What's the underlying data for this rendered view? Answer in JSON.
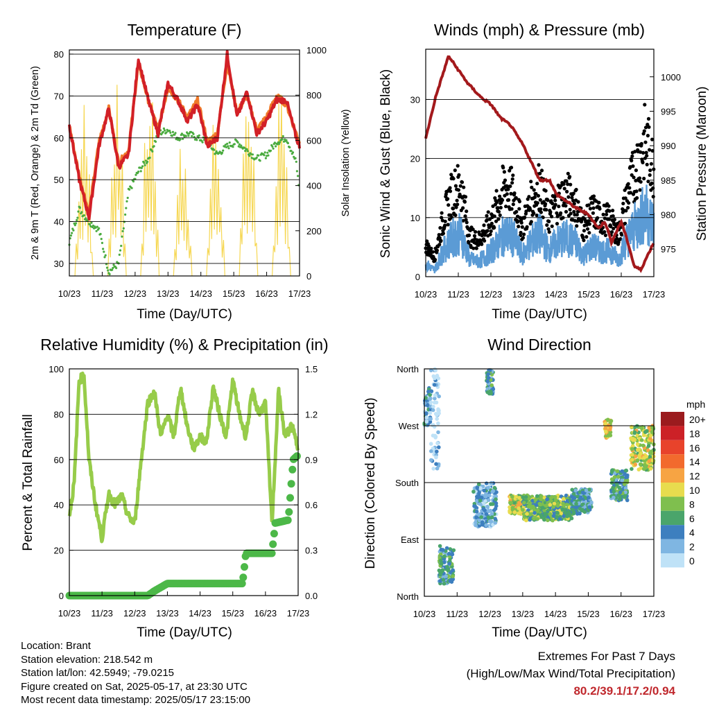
{
  "colors": {
    "temp": "#d22027",
    "temp9": "#f07a2a",
    "dew": "#4aab3f",
    "solar": "#f6d752",
    "gust": "#000000",
    "wind": "#5b9bd5",
    "pressure": "#a3191c",
    "rh": "#97cc4a",
    "rain": "#4cb848",
    "extremes": "#c0282d"
  },
  "x_ticks": [
    "10/23",
    "11/23",
    "12/23",
    "13/23",
    "14/23",
    "15/23",
    "16/23",
    "17/23"
  ],
  "charts": {
    "temperature": {
      "title": "Temperature (F)",
      "xlabel": "Time (Day/UTC)",
      "ylabel": "2m & 9m T (Red, Orange) & 2m Td (Green)",
      "ylabel2": "Solar Insolation (Yellow)",
      "yticks": [
        "80",
        "70",
        "60",
        "50",
        "40",
        "30"
      ],
      "y2ticks": [
        "1000",
        "800",
        "600",
        "400",
        "200",
        "0"
      ]
    },
    "winds": {
      "title": "Winds (mph) & Pressure (mb)",
      "xlabel": "Time (Day/UTC)",
      "ylabel": "Sonic Wind & Gust (Blue, Black)",
      "ylabel2": "Station Pressure (Maroon)",
      "yticks": [
        "30",
        "20",
        "10",
        "0"
      ],
      "y2ticks": [
        "1000",
        "995",
        "990",
        "985",
        "980",
        "975"
      ]
    },
    "humidity": {
      "title": "Relative Humidity (%) & Precipitation (in)",
      "xlabel": "Time (Day/UTC)",
      "ylabel": "Percent & Total Rainfall",
      "yticks": [
        "100",
        "80",
        "60",
        "40",
        "20",
        "0"
      ],
      "y2ticks": [
        "1.5",
        "1.2",
        "0.9",
        "0.6",
        "0.3",
        "0.0"
      ]
    },
    "direction": {
      "title": "Wind Direction",
      "xlabel": "Time (Day/UTC)",
      "ylabel": "Direction (Colored By Speed)",
      "yticks": [
        "North",
        "West",
        "South",
        "East",
        "North"
      ],
      "legend_title": "mph",
      "legend": [
        {
          "label": "20+",
          "color": "#9b1b1e"
        },
        {
          "label": "18",
          "color": "#cc2127"
        },
        {
          "label": "16",
          "color": "#e8432b"
        },
        {
          "label": "14",
          "color": "#f26a2d"
        },
        {
          "label": "12",
          "color": "#f7a443"
        },
        {
          "label": "10",
          "color": "#e8dc4e"
        },
        {
          "label": "8",
          "color": "#7fbf4e"
        },
        {
          "label": "6",
          "color": "#4aa56b"
        },
        {
          "label": "4",
          "color": "#3d7fbf"
        },
        {
          "label": "2",
          "color": "#7fb6e2"
        },
        {
          "label": "0",
          "color": "#bfe2f7"
        }
      ]
    }
  },
  "chart_data": [
    {
      "type": "line",
      "title": "Temperature (F)",
      "xlabel": "Time (Day/UTC)",
      "ylabel": "2m & 9m T (Red, Orange) & 2m Td (Green)",
      "y2label": "Solar Insolation (Yellow)",
      "x": [
        10.0,
        10.3,
        10.6,
        10.9,
        11.2,
        11.5,
        11.8,
        12.1,
        12.4,
        12.7,
        13.0,
        13.3,
        13.6,
        13.9,
        14.2,
        14.5,
        14.8,
        15.1,
        15.4,
        15.7,
        16.0,
        16.3,
        16.6,
        16.9,
        17.0
      ],
      "ylim": [
        27,
        81
      ],
      "y2lim": [
        0,
        1000
      ],
      "series": [
        {
          "name": "2m T",
          "values": [
            63,
            50,
            41,
            58,
            67,
            53,
            56,
            79,
            69,
            61,
            73,
            69,
            64,
            68,
            58,
            60,
            80,
            65,
            71,
            61,
            64,
            69,
            69,
            60,
            58
          ]
        },
        {
          "name": "9m T",
          "values": [
            63,
            51,
            42,
            59,
            67,
            54,
            57,
            78,
            69,
            62,
            72,
            69,
            65,
            69,
            59,
            61,
            78,
            66,
            70,
            62,
            65,
            70,
            68,
            61,
            59
          ]
        },
        {
          "name": "2m Td",
          "values": [
            35,
            43,
            40,
            38,
            28,
            30,
            47,
            52,
            55,
            61,
            62,
            60,
            61,
            60,
            59,
            56,
            58,
            59,
            57,
            55,
            56,
            59,
            60,
            54,
            47
          ]
        }
      ],
      "solar_days": [
        10.45,
        11.45,
        12.45,
        13.45,
        14.45,
        15.45,
        16.45
      ],
      "solar_peaks": [
        800,
        870,
        950,
        700,
        800,
        980,
        850
      ]
    },
    {
      "type": "line",
      "title": "Winds (mph) & Pressure (mb)",
      "xlabel": "Time (Day/UTC)",
      "ylabel": "Sonic Wind & Gust (Blue, Black)",
      "y2label": "Station Pressure (Maroon)",
      "ylim": [
        0,
        38.5
      ],
      "y2lim": [
        971,
        1004
      ],
      "pressure": {
        "x": [
          10.0,
          10.3,
          10.7,
          11.0,
          11.3,
          11.7,
          12.0,
          12.3,
          12.6,
          13.0,
          13.3,
          13.5,
          13.8,
          14.0,
          14.3,
          14.6,
          15.0,
          15.3,
          15.5,
          15.7,
          16.0,
          16.2,
          16.4,
          16.6,
          16.8,
          17.0
        ],
        "values": [
          991,
          997,
          1003,
          1001,
          999,
          997,
          996,
          994,
          993,
          990,
          987,
          985,
          985,
          983,
          982,
          981,
          980,
          978,
          979,
          976,
          979,
          976,
          972.5,
          972,
          974,
          976
        ]
      },
      "wind_envelope": [
        3,
        1.5,
        6,
        9,
        10,
        4,
        3.5,
        5,
        7,
        10,
        9,
        5,
        8,
        10,
        6,
        8,
        9,
        8,
        5,
        7,
        6,
        6,
        4,
        9,
        12,
        15,
        12
      ]
    },
    {
      "type": "line",
      "title": "Relative Humidity (%) & Precipitation (in)",
      "xlabel": "Time (Day/UTC)",
      "ylabel": "Percent & Total Rainfall",
      "ylim": [
        0,
        100
      ],
      "y2lim": [
        0,
        1.5
      ],
      "rh": {
        "x": [
          10.0,
          10.15,
          10.3,
          10.45,
          10.6,
          10.8,
          11.0,
          11.2,
          11.4,
          11.6,
          11.8,
          12.0,
          12.2,
          12.4,
          12.6,
          12.8,
          13.0,
          13.2,
          13.4,
          13.6,
          13.8,
          14.0,
          14.2,
          14.4,
          14.6,
          14.8,
          15.0,
          15.2,
          15.4,
          15.6,
          15.8,
          16.0,
          16.2,
          16.4,
          16.6,
          16.8,
          17.0
        ],
        "values": [
          35,
          50,
          95,
          97,
          60,
          40,
          25,
          45,
          40,
          44,
          35,
          32,
          60,
          85,
          90,
          70,
          80,
          70,
          92,
          75,
          65,
          70,
          68,
          92,
          80,
          70,
          95,
          80,
          70,
          90,
          80,
          85,
          32,
          90,
          70,
          75,
          65
        ]
      },
      "precip": {
        "x": [
          10.0,
          12.4,
          12.6,
          13.0,
          15.3,
          15.4,
          16.2,
          16.3,
          16.7,
          16.85,
          17.0
        ],
        "values": [
          0.0,
          0.0,
          0.03,
          0.08,
          0.08,
          0.28,
          0.28,
          0.48,
          0.5,
          0.9,
          0.93
        ]
      }
    },
    {
      "type": "scatter",
      "title": "Wind Direction",
      "xlabel": "Time (Day/UTC)",
      "ylabel": "Direction (Colored By Speed)",
      "y_categories": [
        "North",
        "East",
        "South",
        "West",
        "North"
      ],
      "legend_title": "mph",
      "legend": [
        "20+",
        "18",
        "16",
        "14",
        "12",
        "10",
        "8",
        "6",
        "4",
        "2",
        "0"
      ],
      "clusters": [
        {
          "x": [
            10.0,
            10.2
          ],
          "dir": [
            270,
            330
          ],
          "speed": 4
        },
        {
          "x": [
            10.2,
            10.45
          ],
          "dir": [
            200,
            360
          ],
          "speed": 2
        },
        {
          "x": [
            10.45,
            10.9
          ],
          "dir": [
            20,
            80
          ],
          "speed": 6
        },
        {
          "x": [
            11.9,
            12.1
          ],
          "dir": [
            320,
            360
          ],
          "speed": 6
        },
        {
          "x": [
            11.5,
            12.2
          ],
          "dir": [
            110,
            180
          ],
          "speed": 4
        },
        {
          "x": [
            12.6,
            13.0
          ],
          "dir": [
            130,
            160
          ],
          "speed": 10
        },
        {
          "x": [
            13.0,
            14.5
          ],
          "dir": [
            120,
            160
          ],
          "speed": 8
        },
        {
          "x": [
            14.5,
            15.1
          ],
          "dir": [
            130,
            170
          ],
          "speed": 5
        },
        {
          "x": [
            15.5,
            15.7
          ],
          "dir": [
            250,
            280
          ],
          "speed": 11
        },
        {
          "x": [
            15.7,
            16.2
          ],
          "dir": [
            150,
            200
          ],
          "speed": 6
        },
        {
          "x": [
            16.3,
            17.0
          ],
          "dir": [
            200,
            270
          ],
          "speed": 10
        }
      ]
    }
  ],
  "info": {
    "location": "Location: Brant",
    "elevation": "Station elevation: 218.542 m",
    "latlon": "Station lat/lon: 42.5949; -79.0215",
    "created": "Figure created on Sat, 2025-05-17, at 23:30 UTC",
    "recent": "Most recent data timestamp: 2025/05/17 23:15:00"
  },
  "extremes": {
    "title": "Extremes For Past 7 Days",
    "subtitle": "(High/Low/Max Wind/Total Precipitation)",
    "values": "80.2/39.1/17.2/0.94"
  }
}
